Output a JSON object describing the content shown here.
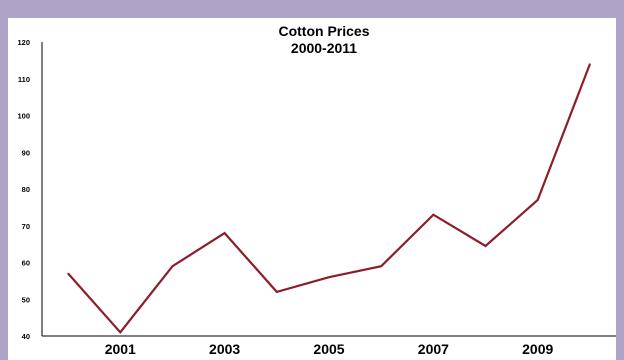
{
  "chart_data": {
    "type": "line",
    "title_lines": [
      "Cotton Prices",
      "2000-2011"
    ],
    "xlabel": "",
    "ylabel": "",
    "x": [
      2000,
      2001,
      2002,
      2003,
      2004,
      2005,
      2006,
      2007,
      2008,
      2009,
      2010
    ],
    "x_tick_labels": [
      "2001",
      "2003",
      "2005",
      "2007",
      "2009"
    ],
    "x_tick_values": [
      2001,
      2003,
      2005,
      2007,
      2009
    ],
    "y_ticks": [
      "40",
      "50",
      "60",
      "70",
      "80",
      "90",
      "100",
      "110",
      "120"
    ],
    "ylim": [
      40,
      120
    ],
    "xlim": [
      1999.5,
      2010.5
    ],
    "grid": false,
    "legend": "none",
    "series": [
      {
        "color": "#8b1e2a",
        "values": [
          57,
          41,
          59,
          68,
          52,
          56,
          59,
          73,
          64.5,
          77,
          114
        ]
      }
    ]
  }
}
